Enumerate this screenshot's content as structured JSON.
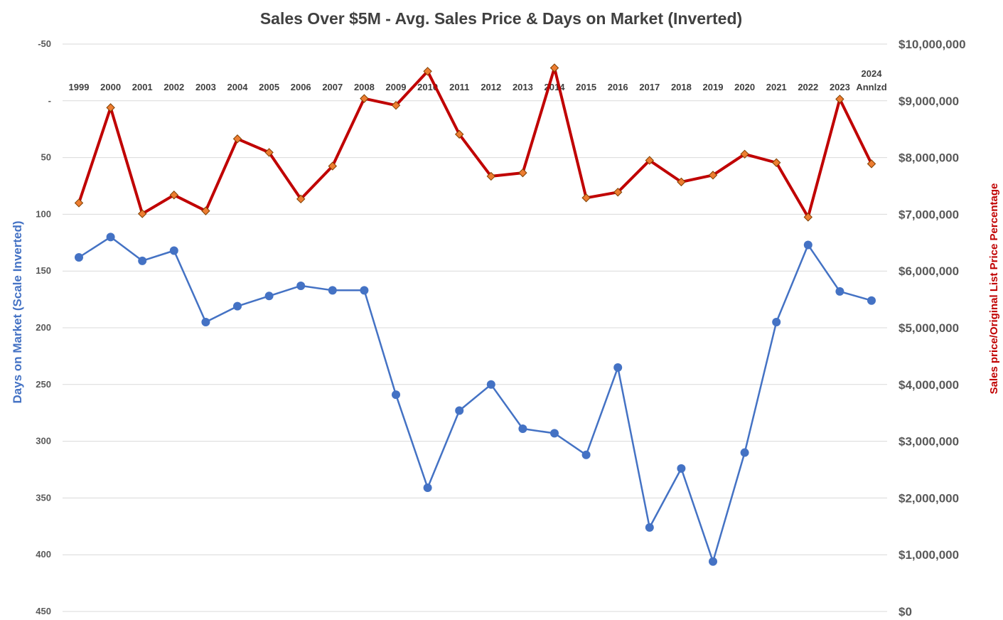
{
  "chart_data": {
    "type": "line",
    "title": "Sales  Over $5M - Avg. Sales Price & Days on Market (Inverted)",
    "categories": [
      "1999",
      "2000",
      "2001",
      "2002",
      "2003",
      "2004",
      "2005",
      "2006",
      "2007",
      "2008",
      "2009",
      "2010",
      "2011",
      "2012",
      "2013",
      "2014",
      "2015",
      "2016",
      "2017",
      "2018",
      "2019",
      "2020",
      "2021",
      "2022",
      "2023",
      "2024 Annlzd"
    ],
    "y_left": {
      "label": "Days on Market (Scale Inverted)",
      "range": [
        -50,
        450
      ],
      "inverted": true,
      "tick_values": [
        -50,
        0,
        50,
        100,
        150,
        200,
        250,
        300,
        350,
        400,
        450
      ],
      "tick_labels": [
        "-50",
        "-",
        "50",
        "100",
        "150",
        "200",
        "250",
        "300",
        "350",
        "400",
        "450"
      ]
    },
    "y_right": {
      "label": "Sales price/Original List Price Percentage",
      "range": [
        0,
        10000000
      ],
      "tick_values": [
        0,
        1000000,
        2000000,
        3000000,
        4000000,
        5000000,
        6000000,
        7000000,
        8000000,
        9000000,
        10000000
      ],
      "tick_labels": [
        "$0",
        "$1,000,000",
        "$2,000,000",
        "$3,000,000",
        "$4,000,000",
        "$5,000,000",
        "$6,000,000",
        "$7,000,000",
        "$8,000,000",
        "$9,000,000",
        "$10,000,000"
      ]
    },
    "series": [
      {
        "axis": "left",
        "color": "#4472C4",
        "marker": "circle",
        "values": [
          138,
          120,
          141,
          132,
          195,
          181,
          172,
          163,
          167,
          167,
          259,
          341,
          273,
          250,
          289,
          293,
          312,
          235,
          376,
          324,
          406,
          310,
          195,
          127,
          168,
          176
        ]
      },
      {
        "axis": "right",
        "color": "#C00000",
        "marker": "diamond",
        "marker_color": "#ED7D31",
        "values": [
          7200000,
          8880000,
          7010000,
          7340000,
          7060000,
          8330000,
          8090000,
          7270000,
          7850000,
          9040000,
          8920000,
          9520000,
          8410000,
          7670000,
          7730000,
          9580000,
          7290000,
          7390000,
          7950000,
          7570000,
          7690000,
          8060000,
          7910000,
          6950000,
          9030000,
          7890000
        ]
      }
    ],
    "grid": true,
    "legend": "none"
  },
  "colors": {
    "days_series": "#4472C4",
    "price_series": "#C00000",
    "price_marker": "#ED7D31",
    "gridline": "#D9D9D9"
  }
}
